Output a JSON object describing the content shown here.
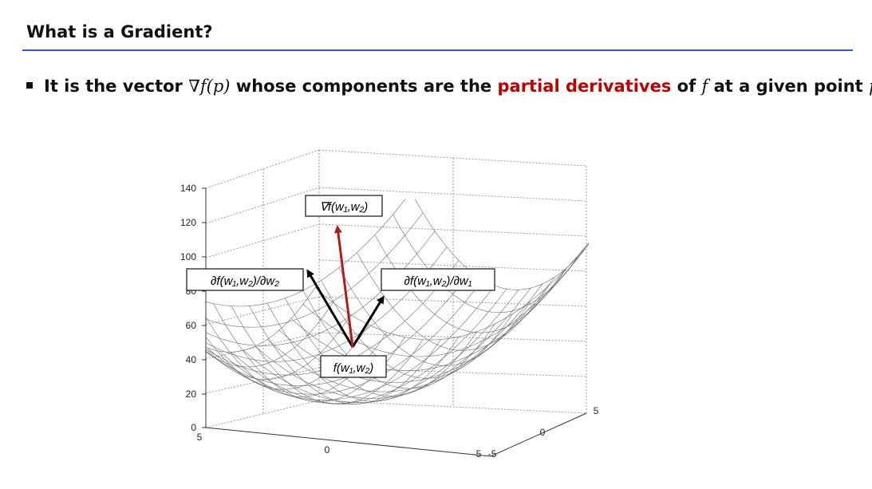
{
  "slide": {
    "title": "What is a Gradient?",
    "bullet": {
      "t1": "It is the vector ",
      "m1": "∇f(p)",
      "t2": " whose components are the ",
      "hl": "partial derivatives",
      "t3": " of ",
      "m2": "f",
      "t4": " at a given point ",
      "m3": "p"
    }
  },
  "figure": {
    "z_ticks": [
      "140",
      "120",
      "100",
      "80",
      "60",
      "40",
      "20",
      "0"
    ],
    "x_ticks": [
      "5",
      "0",
      "-5"
    ],
    "y_ticks": [
      "-5",
      "0",
      "5"
    ],
    "labels": {
      "gradient": "∇f(w₁,w₂)",
      "partial_w2": "∂f(w₁,w₂)/∂w₂",
      "partial_w1": "∂f(w₁,w₂)/∂w₁",
      "point": "f(w₁,w₂)"
    },
    "colors": {
      "gradient_arrow": "#b01c1c",
      "partial_arrows": "#000000",
      "accent": "#c00000",
      "rule": "#3b4fd6"
    }
  }
}
